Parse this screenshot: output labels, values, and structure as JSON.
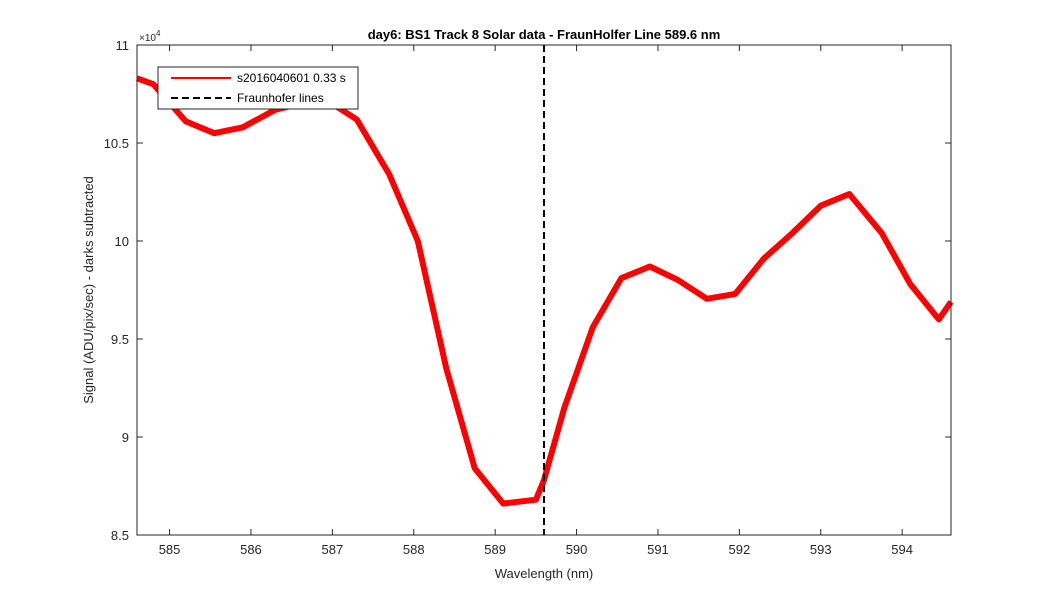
{
  "chart_data": {
    "type": "line",
    "title": "day6: BS1  Track 8 Solar data - FraunHolfer Line 589.6 nm",
    "xlabel": "Wavelength (nm)",
    "ylabel": "Signal (ADU/pix/sec) - darks subtracted",
    "y_exponent_label": "×10",
    "y_exponent_power": "4",
    "xlim": [
      584.6,
      594.6
    ],
    "ylim": [
      85000,
      110000
    ],
    "x_ticks": [
      585,
      586,
      587,
      588,
      589,
      590,
      591,
      592,
      593,
      594
    ],
    "x_tick_labels": [
      "585",
      "586",
      "587",
      "588",
      "589",
      "590",
      "591",
      "592",
      "593",
      "594"
    ],
    "y_ticks": [
      85000,
      90000,
      95000,
      100000,
      105000,
      110000
    ],
    "y_tick_labels": [
      "8.5",
      "9",
      "9.5",
      "10",
      "10.5",
      "11"
    ],
    "grid": false,
    "legend_position": "top-left",
    "series": [
      {
        "name": "s2016040601 0.33 s",
        "color": "#ff0000",
        "style": "solid",
        "x": [
          584.6,
          584.8,
          585.2,
          585.55,
          585.9,
          586.3,
          586.6,
          587.0,
          587.3,
          587.7,
          588.05,
          588.4,
          588.75,
          589.1,
          589.5,
          589.6,
          589.85,
          590.2,
          590.55,
          590.9,
          591.25,
          591.6,
          591.95,
          592.3,
          592.65,
          593.0,
          593.35,
          593.75,
          594.1,
          594.45,
          594.6
        ],
        "y": [
          108300,
          108000,
          106100,
          105500,
          105800,
          106700,
          107000,
          107000,
          106200,
          103400,
          100000,
          93500,
          88400,
          86600,
          86800,
          87800,
          91500,
          95600,
          98100,
          98700,
          98000,
          97050,
          97300,
          99100,
          100400,
          101800,
          102400,
          100400,
          97800,
          96000,
          96900
        ]
      },
      {
        "name": "Fraunhofer lines",
        "color": "#000000",
        "style": "dashed",
        "vline_x": 589.6
      }
    ]
  }
}
